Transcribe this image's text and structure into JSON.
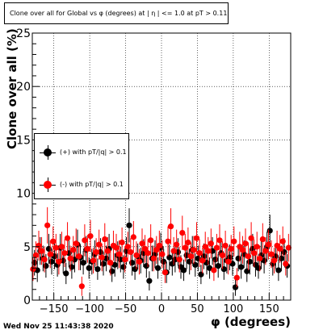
{
  "chart_data": {
    "type": "scatter",
    "title": "Clone  over all for Global vs φ (degrees) at | η | <= 1.0 at pT > 0.11",
    "xlabel": "φ (degrees)",
    "ylabel": "Clone  over all (%)",
    "xlim": [
      -180,
      180
    ],
    "ylim": [
      0,
      25
    ],
    "xticks": [
      -150,
      -100,
      -50,
      0,
      50,
      100,
      150
    ],
    "yticks": [
      0,
      5,
      10,
      15,
      20,
      25
    ],
    "grid": true,
    "legend_position": "left",
    "series": [
      {
        "name": "(+) with pT/|q| > 0.1",
        "color": "#000000",
        "x": [
          -177,
          -173,
          -169,
          -165,
          -161,
          -157,
          -153,
          -149,
          -145,
          -141,
          -137,
          -133,
          -129,
          -125,
          -121,
          -117,
          -113,
          -109,
          -105,
          -101,
          -97,
          -93,
          -89,
          -85,
          -81,
          -77,
          -73,
          -69,
          -65,
          -61,
          -57,
          -53,
          -49,
          -45,
          -41,
          -37,
          -33,
          -29,
          -25,
          -21,
          -17,
          -13,
          -9,
          -5,
          -1,
          3,
          7,
          11,
          15,
          19,
          23,
          27,
          31,
          35,
          39,
          43,
          47,
          51,
          55,
          59,
          63,
          67,
          71,
          75,
          79,
          83,
          87,
          91,
          95,
          99,
          103,
          107,
          111,
          115,
          119,
          123,
          127,
          131,
          135,
          139,
          143,
          147,
          151,
          155,
          159,
          163,
          167,
          171,
          175
        ],
        "y": [
          3.5,
          2.8,
          4.6,
          3.9,
          3.2,
          4.8,
          3.6,
          4.1,
          3.3,
          4.9,
          3.7,
          2.5,
          4.4,
          3.1,
          3.8,
          5.2,
          4.0,
          3.5,
          4.7,
          3.0,
          3.6,
          4.3,
          2.9,
          4.5,
          3.4,
          3.9,
          4.8,
          2.7,
          3.3,
          4.2,
          3.8,
          3.1,
          4.6,
          7.0,
          3.5,
          2.9,
          4.1,
          3.7,
          4.4,
          3.2,
          1.8,
          3.9,
          4.3,
          3.0,
          4.9,
          3.6,
          2.6,
          4.0,
          3.4,
          3.8,
          4.5,
          3.1,
          2.8,
          4.2,
          3.6,
          4.7,
          3.3,
          3.9,
          2.4,
          4.1,
          3.5,
          3.0,
          4.6,
          3.8,
          3.2,
          4.4,
          2.9,
          3.7,
          4.0,
          3.4,
          1.2,
          3.9,
          3.1,
          4.3,
          2.7,
          3.6,
          4.8,
          3.3,
          3.0,
          4.2,
          3.7,
          5.0,
          6.5,
          3.4,
          4.1,
          2.8,
          3.9,
          4.5,
          3.2
        ],
        "err": [
          1.2,
          1.1,
          1.3,
          1.2,
          1.1,
          1.4,
          1.2,
          1.2,
          1.1,
          1.3,
          1.2,
          1.0,
          1.3,
          1.1,
          1.2,
          1.4,
          1.2,
          1.1,
          1.3,
          1.0,
          1.2,
          1.3,
          1.0,
          1.3,
          1.1,
          1.2,
          1.4,
          1.0,
          1.1,
          1.3,
          1.2,
          1.1,
          1.3,
          1.6,
          1.2,
          1.0,
          1.2,
          1.2,
          1.3,
          1.1,
          0.9,
          1.2,
          1.3,
          1.0,
          1.4,
          1.2,
          1.0,
          1.2,
          1.1,
          1.2,
          1.3,
          1.1,
          1.0,
          1.3,
          1.2,
          1.3,
          1.1,
          1.2,
          0.9,
          1.2,
          1.1,
          1.0,
          1.3,
          1.2,
          1.1,
          1.3,
          1.0,
          1.2,
          1.2,
          1.1,
          0.8,
          1.2,
          1.1,
          1.3,
          1.0,
          1.2,
          1.4,
          1.1,
          1.0,
          1.3,
          1.2,
          1.4,
          1.5,
          1.1,
          1.2,
          1.0,
          1.2,
          1.3,
          1.1
        ]
      },
      {
        "name": "(-) with pT/|q| > 0.1",
        "color": "#ff0000",
        "x": [
          -179,
          -175,
          -171,
          -167,
          -163,
          -159,
          -155,
          -151,
          -147,
          -143,
          -139,
          -135,
          -131,
          -127,
          -123,
          -119,
          -115,
          -111,
          -107,
          -103,
          -99,
          -95,
          -91,
          -87,
          -83,
          -79,
          -75,
          -71,
          -67,
          -63,
          -59,
          -55,
          -51,
          -47,
          -43,
          -39,
          -35,
          -31,
          -27,
          -23,
          -19,
          -15,
          -11,
          -7,
          -3,
          1,
          5,
          9,
          13,
          17,
          21,
          25,
          29,
          33,
          37,
          41,
          45,
          49,
          53,
          57,
          61,
          65,
          69,
          73,
          77,
          81,
          85,
          89,
          93,
          97,
          101,
          105,
          109,
          113,
          117,
          121,
          125,
          129,
          133,
          137,
          141,
          145,
          149,
          153,
          157,
          161,
          165,
          169,
          173,
          177
        ],
        "y": [
          2.9,
          4.2,
          5.1,
          4.6,
          3.8,
          7.0,
          4.3,
          5.5,
          4.9,
          3.6,
          5.0,
          4.4,
          5.8,
          3.9,
          4.7,
          5.3,
          4.1,
          1.3,
          5.6,
          4.8,
          6.0,
          3.7,
          4.5,
          5.2,
          4.0,
          5.7,
          4.6,
          3.5,
          5.1,
          4.9,
          4.3,
          5.4,
          3.8,
          5.0,
          4.5,
          5.9,
          4.2,
          3.6,
          5.3,
          4.8,
          4.4,
          5.6,
          3.9,
          4.7,
          5.1,
          4.3,
          2.6,
          5.5,
          6.9,
          4.6,
          5.2,
          3.8,
          6.3,
          4.9,
          5.4,
          4.1,
          4.7,
          5.8,
          4.4,
          3.7,
          5.0,
          4.6,
          5.3,
          2.8,
          4.9,
          5.6,
          4.2,
          5.1,
          3.6,
          4.8,
          5.5,
          2.1,
          5.0,
          4.7,
          5.3,
          4.1,
          5.8,
          4.4,
          5.0,
          3.9,
          5.7,
          4.6,
          5.2,
          4.3,
          3.7,
          5.1,
          4.8,
          5.5,
          3.4,
          4.9
        ],
        "err": [
          1.1,
          1.3,
          1.4,
          1.3,
          1.2,
          1.7,
          1.3,
          1.4,
          1.3,
          1.2,
          1.4,
          1.3,
          1.5,
          1.2,
          1.3,
          1.4,
          1.3,
          0.9,
          1.5,
          1.3,
          1.5,
          1.2,
          1.3,
          1.4,
          1.3,
          1.5,
          1.3,
          1.2,
          1.4,
          1.3,
          1.3,
          1.4,
          1.2,
          1.4,
          1.3,
          1.5,
          1.3,
          1.2,
          1.4,
          1.3,
          1.3,
          1.5,
          1.2,
          1.3,
          1.4,
          1.3,
          1.0,
          1.4,
          1.7,
          1.3,
          1.4,
          1.2,
          1.6,
          1.3,
          1.4,
          1.3,
          1.3,
          1.5,
          1.3,
          1.2,
          1.4,
          1.3,
          1.4,
          1.0,
          1.3,
          1.5,
          1.3,
          1.4,
          1.2,
          1.3,
          1.4,
          0.9,
          1.4,
          1.3,
          1.4,
          1.3,
          1.5,
          1.3,
          1.4,
          1.2,
          1.5,
          1.3,
          1.4,
          1.3,
          1.2,
          1.4,
          1.3,
          1.4,
          1.1,
          1.3
        ]
      }
    ]
  },
  "footer": "Wed Nov 25 11:43:38 2020"
}
